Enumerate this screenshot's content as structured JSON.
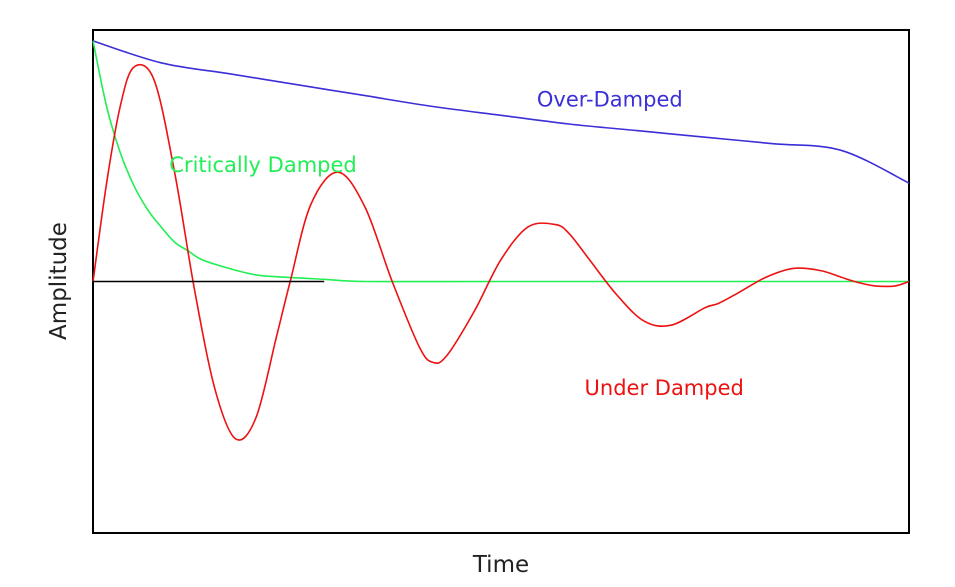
{
  "chart_data": {
    "type": "line",
    "title": "",
    "xlabel": "Time",
    "ylabel": "Amplitude",
    "xlim": [
      0,
      6
    ],
    "ylim": [
      -1.15,
      1.15
    ],
    "grid": false,
    "legend": "none",
    "series": [
      {
        "name": "Over-Damped",
        "color": "#3b2fd8",
        "x": [
          0,
          0.5,
          1,
          1.5,
          2,
          2.5,
          3,
          3.5,
          4,
          4.5,
          5,
          5.5,
          6
        ],
        "y": [
          1.1,
          1.0,
          0.95,
          0.9,
          0.85,
          0.8,
          0.76,
          0.72,
          0.69,
          0.66,
          0.63,
          0.6,
          0.45
        ]
      },
      {
        "name": "Critically Damped",
        "color": "#22ee55",
        "x": [
          0,
          0.1,
          0.2,
          0.3,
          0.4,
          0.5,
          0.6,
          0.7,
          0.8,
          1.0,
          1.2,
          1.4,
          1.7,
          2.0,
          3.0,
          4.0,
          5.0,
          6.0
        ],
        "y": [
          1.1,
          0.8,
          0.59,
          0.44,
          0.33,
          0.25,
          0.18,
          0.14,
          0.1,
          0.06,
          0.03,
          0.02,
          0.01,
          0.0,
          0.0,
          0.0,
          0.0,
          0.0
        ]
      },
      {
        "name": "Under Damped",
        "color": "#ee1111",
        "x": [
          0,
          0.1,
          0.2,
          0.3,
          0.45,
          0.6,
          0.75,
          0.9,
          1.05,
          1.2,
          1.35,
          1.45,
          1.6,
          1.8,
          2.0,
          2.2,
          2.4,
          2.5,
          2.6,
          2.8,
          3.0,
          3.2,
          3.4,
          3.5,
          3.65,
          3.85,
          4.05,
          4.25,
          4.5,
          4.6,
          4.75,
          4.95,
          5.15,
          5.35,
          5.5,
          5.6,
          5.75,
          5.9,
          6.0
        ],
        "y": [
          0.0,
          0.45,
          0.8,
          0.98,
          0.92,
          0.5,
          -0.05,
          -0.5,
          -0.72,
          -0.62,
          -0.25,
          0.0,
          0.35,
          0.5,
          0.34,
          0.0,
          -0.3,
          -0.37,
          -0.34,
          -0.14,
          0.1,
          0.25,
          0.26,
          0.22,
          0.1,
          -0.06,
          -0.18,
          -0.2,
          -0.12,
          -0.1,
          -0.05,
          0.02,
          0.06,
          0.05,
          0.02,
          0.0,
          -0.02,
          -0.02,
          0.0
        ]
      },
      {
        "name": "",
        "color": "#000000",
        "x": [
          0,
          1.7
        ],
        "y": [
          0,
          0
        ]
      }
    ],
    "annotations": [
      {
        "text": "Over-Damped",
        "x": 3.8,
        "y": 0.8,
        "color": "#3b2fd8"
      },
      {
        "text": "Critically Damped",
        "x": 1.25,
        "y": 0.5,
        "color": "#22ee55"
      },
      {
        "text": "Under Damped",
        "x": 4.2,
        "y": -0.52,
        "color": "#ee1111"
      }
    ]
  }
}
